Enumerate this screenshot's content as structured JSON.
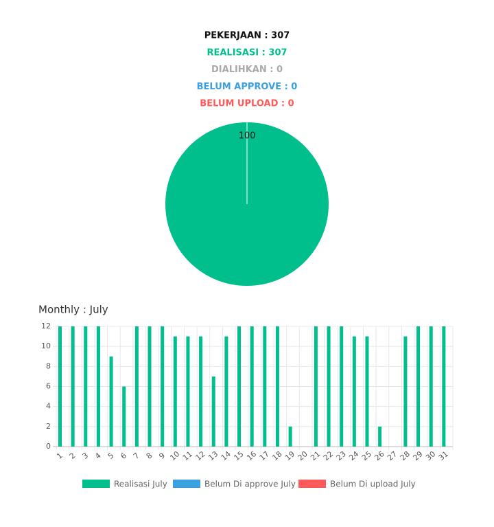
{
  "summary": [
    {
      "text": "PEKERJAAN : 307",
      "color": "#111111"
    },
    {
      "text": "REALISASI : 307",
      "color": "#00bf8c"
    },
    {
      "text": "DIALIHKAN : 0",
      "color": "#aaaaaa"
    },
    {
      "text": "BELUM APPROVE : 0",
      "color": "#3aa0e0"
    },
    {
      "text": "BELUM UPLOAD : 0",
      "color": "#ff5a5a"
    }
  ],
  "chart_data": [
    {
      "type": "pie",
      "values": [
        100
      ],
      "colors": [
        "#00bf8c"
      ]
    },
    {
      "type": "bar",
      "title": "Monthly : July",
      "categories": [
        "1",
        "2",
        "3",
        "4",
        "5",
        "6",
        "7",
        "8",
        "9",
        "10",
        "11",
        "12",
        "13",
        "14",
        "15",
        "16",
        "17",
        "18",
        "19",
        "20",
        "21",
        "22",
        "23",
        "24",
        "25",
        "26",
        "27",
        "28",
        "29",
        "30",
        "31"
      ],
      "series": [
        {
          "name": "Realisasi July",
          "color": "#00bf8c",
          "values": [
            12,
            12,
            12,
            12,
            9,
            6,
            12,
            12,
            12,
            11,
            11,
            11,
            7,
            11,
            12,
            12,
            12,
            12,
            2,
            0,
            12,
            12,
            12,
            11,
            11,
            2,
            0,
            11,
            12,
            12,
            12
          ]
        },
        {
          "name": "Belum Di approve July",
          "color": "#3aa0e0",
          "values": [
            0,
            0,
            0,
            0,
            0,
            0,
            0,
            0,
            0,
            0,
            0,
            0,
            0,
            0,
            0,
            0,
            0,
            0,
            0,
            0,
            0,
            0,
            0,
            0,
            0,
            0,
            0,
            0,
            0,
            0,
            0
          ]
        },
        {
          "name": "Belum Di upload July",
          "color": "#ff5a5a",
          "values": [
            0,
            0,
            0,
            0,
            0,
            0,
            0,
            0,
            0,
            0,
            0,
            0,
            0,
            0,
            0,
            0,
            0,
            0,
            0,
            0,
            0,
            0,
            0,
            0,
            0,
            0,
            0,
            0,
            0,
            0,
            0
          ]
        }
      ],
      "ylim": [
        0,
        12
      ],
      "yticks": [
        0,
        2,
        4,
        6,
        8,
        10,
        12
      ],
      "grid": true
    }
  ]
}
